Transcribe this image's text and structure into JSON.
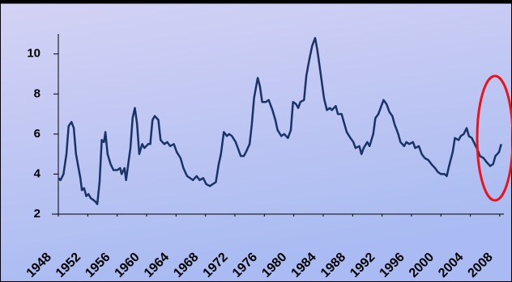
{
  "chart_data": {
    "type": "line",
    "color": "#1a3366",
    "x": [
      1948.0,
      1948.3,
      1948.7,
      1949.1,
      1949.4,
      1949.8,
      1950.1,
      1950.4,
      1950.7,
      1951.0,
      1951.2,
      1951.5,
      1951.8,
      1952.1,
      1952.4,
      1952.8,
      1953.1,
      1953.3,
      1953.6,
      1953.9,
      1954.2,
      1954.4,
      1954.7,
      1955.1,
      1955.5,
      1956.0,
      1956.4,
      1956.6,
      1957.0,
      1957.2,
      1957.5,
      1957.8,
      1958.1,
      1958.4,
      1958.7,
      1959.0,
      1959.4,
      1959.7,
      1960.2,
      1960.5,
      1960.8,
      1961.1,
      1961.6,
      1961.9,
      1962.4,
      1962.8,
      1963.2,
      1963.7,
      1964.1,
      1964.6,
      1965.0,
      1965.5,
      1965.9,
      1966.3,
      1966.8,
      1967.2,
      1967.7,
      1968.1,
      1968.6,
      1969.0,
      1969.4,
      1969.8,
      1970.1,
      1970.5,
      1970.9,
      1971.2,
      1971.6,
      1972.1,
      1972.4,
      1972.8,
      1973.2,
      1973.5,
      1974.0,
      1974.3,
      1974.6,
      1975.1,
      1975.4,
      1975.7,
      1976.2,
      1976.6,
      1977.1,
      1977.5,
      1977.8,
      1978.3,
      1978.7,
      1979.2,
      1979.6,
      1979.9,
      1980.3,
      1980.6,
      1980.9,
      1981.4,
      1981.7,
      1982.1,
      1982.5,
      1982.9,
      1983.2,
      1983.7,
      1984.1,
      1984.5,
      1984.9,
      1985.2,
      1985.7,
      1986.0,
      1986.5,
      1986.8,
      1987.2,
      1987.7,
      1988.1,
      1988.4,
      1988.9,
      1989.2,
      1989.5,
      1990.0,
      1990.3,
      1990.8,
      1991.1,
      1991.5,
      1991.9,
      1992.2,
      1992.6,
      1993.0,
      1993.4,
      1993.7,
      1994.2,
      1994.5,
      1995.0,
      1995.3,
      1995.7,
      1996.2,
      1996.5,
      1997.0,
      1997.4,
      1997.8,
      1998.3,
      1998.7,
      1999.2,
      1999.6,
      2000.0,
      2000.5,
      2000.8,
      2001.1,
      2001.6,
      2001.9,
      2002.4,
      2002.7,
      2003.1,
      2003.5,
      2003.8,
      2004.2,
      2004.6,
      2005.0,
      2005.3,
      2005.8,
      2006.2,
      2006.7,
      2007.1,
      2007.4,
      2007.9,
      2008.2
    ],
    "values": [
      3.8,
      3.7,
      4.0,
      5.0,
      6.4,
      6.6,
      6.3,
      5.0,
      4.4,
      3.8,
      3.2,
      3.3,
      2.9,
      3.0,
      2.8,
      2.7,
      2.6,
      2.5,
      3.6,
      5.7,
      5.6,
      6.1,
      5.0,
      4.5,
      4.2,
      4.2,
      4.3,
      4.0,
      4.3,
      3.7,
      4.5,
      5.3,
      6.8,
      7.3,
      6.5,
      5.0,
      5.5,
      5.3,
      5.5,
      5.5,
      6.7,
      6.9,
      6.7,
      5.7,
      5.5,
      5.6,
      5.4,
      5.5,
      5.1,
      4.8,
      4.3,
      3.9,
      3.8,
      3.7,
      3.9,
      3.7,
      3.8,
      3.5,
      3.4,
      3.5,
      3.6,
      4.5,
      5.0,
      6.1,
      5.9,
      6.0,
      5.9,
      5.6,
      5.3,
      4.9,
      4.9,
      5.1,
      5.5,
      6.5,
      7.8,
      8.8,
      8.4,
      7.6,
      7.6,
      7.7,
      7.2,
      6.7,
      6.2,
      5.9,
      6.0,
      5.8,
      6.2,
      7.6,
      7.5,
      7.3,
      7.6,
      7.7,
      8.9,
      9.7,
      10.4,
      10.8,
      10.2,
      8.9,
      7.8,
      7.2,
      7.3,
      7.2,
      7.4,
      7.0,
      7.0,
      6.6,
      6.1,
      5.8,
      5.6,
      5.3,
      5.4,
      5.0,
      5.3,
      5.6,
      5.4,
      6.0,
      6.8,
      7.0,
      7.4,
      7.7,
      7.5,
      7.1,
      6.9,
      6.5,
      6.0,
      5.6,
      5.4,
      5.6,
      5.5,
      5.6,
      5.3,
      5.4,
      5.0,
      4.8,
      4.7,
      4.5,
      4.3,
      4.1,
      4.0,
      4.0,
      3.9,
      4.4,
      5.1,
      5.8,
      5.7,
      5.9,
      6.0,
      6.3,
      5.9,
      5.8,
      5.5,
      5.2,
      4.9,
      4.8,
      4.6,
      4.4,
      4.5,
      4.9,
      5.1,
      5.5
    ],
    "xlim": [
      1948,
      2009
    ],
    "xticks": [
      1948,
      1952,
      1956,
      1960,
      1964,
      1968,
      1972,
      1976,
      1980,
      1984,
      1988,
      1992,
      1996,
      2000,
      2004,
      2008
    ],
    "ylim": [
      2,
      11
    ],
    "yticks": [
      2,
      4,
      6,
      8,
      10
    ],
    "grid": false
  }
}
